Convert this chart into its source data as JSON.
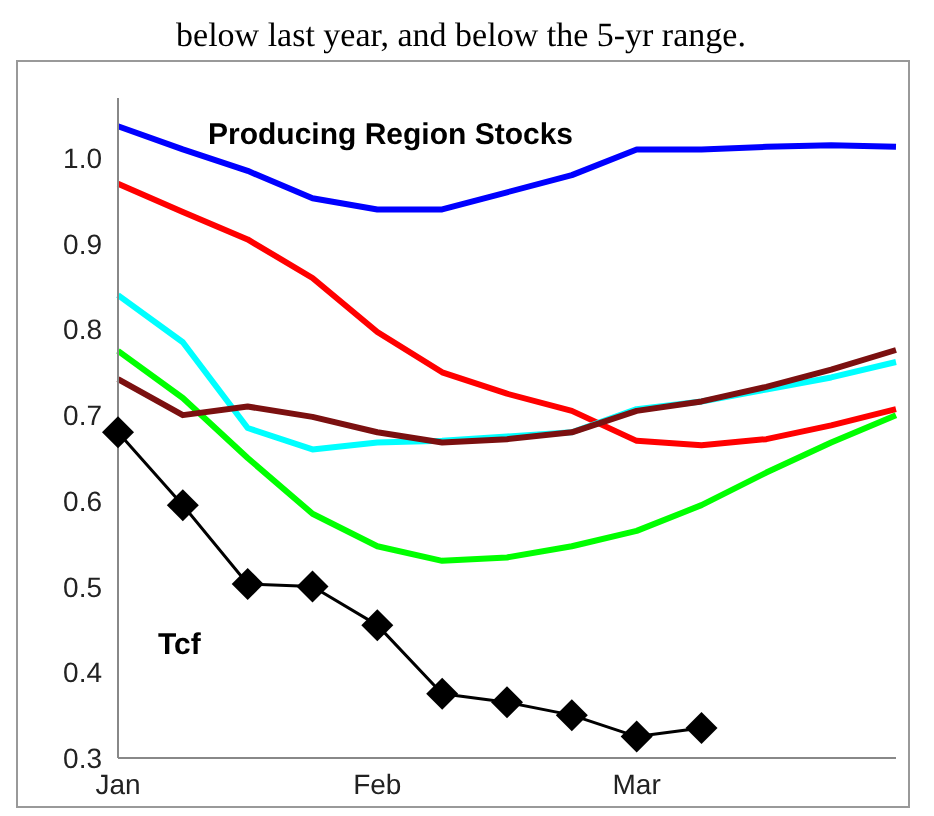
{
  "chart_data": {
    "type": "line",
    "subtitle": "below last year, and below the 5-yr range.",
    "title": "Producing Region Stocks",
    "ylabel": "Tcf",
    "categories": [
      "Jan",
      null,
      null,
      null,
      "Feb",
      null,
      null,
      null,
      "Mar",
      null,
      null,
      null,
      null
    ],
    "ylim": [
      0.3,
      1.07
    ],
    "yticks": [
      0.3,
      0.4,
      0.5,
      0.6,
      0.7,
      0.8,
      0.9,
      {
        "value": 1,
        "label": "1.0"
      }
    ],
    "grid": false,
    "legend": false,
    "marker": "none",
    "line_style": "solid",
    "series": [
      {
        "color": "#0000ff",
        "values": [
          1.037,
          1.01,
          0.985,
          0.953,
          0.94,
          0.94,
          0.96,
          0.98,
          1.01,
          1.01,
          1.013,
          1.015,
          1.013
        ]
      },
      {
        "color": "#ff0000",
        "values": [
          0.97,
          0.937,
          0.905,
          0.86,
          0.797,
          0.75,
          0.725,
          0.705,
          0.67,
          0.665,
          0.672,
          0.688,
          0.707
        ]
      },
      {
        "color": "#00ffff",
        "values": [
          0.84,
          0.785,
          0.685,
          0.66,
          0.668,
          0.67,
          0.675,
          0.68,
          0.707,
          0.716,
          0.73,
          0.744,
          0.762
        ]
      },
      {
        "color": "#00ff00",
        "values": [
          0.775,
          0.72,
          0.65,
          0.585,
          0.547,
          0.53,
          0.534,
          0.547,
          0.565,
          0.595,
          0.633,
          0.668,
          0.7
        ]
      },
      {
        "color": "#7b1010",
        "values": [
          0.742,
          0.7,
          0.71,
          0.698,
          0.68,
          0.668,
          0.672,
          0.68,
          0.705,
          0.716,
          0.733,
          0.753,
          0.776
        ]
      },
      {
        "color": "#000000",
        "marker": "diamond",
        "values": [
          0.68,
          0.595,
          0.503,
          0.5,
          0.455,
          0.375,
          0.365,
          0.35,
          0.325,
          0.335,
          null,
          null,
          null
        ]
      }
    ]
  }
}
